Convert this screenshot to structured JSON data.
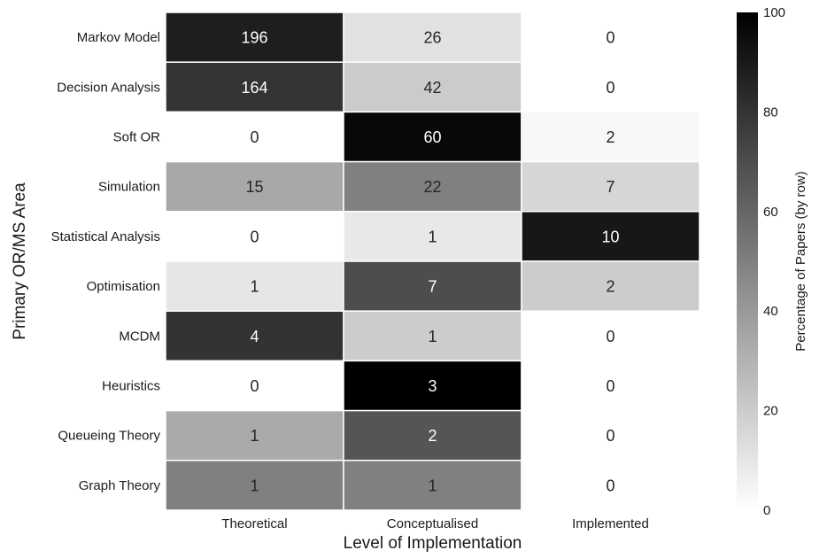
{
  "chart_data": {
    "type": "heatmap",
    "title": "",
    "xlabel": "Level of Implementation",
    "ylabel": "Primary OR/MS Area",
    "columns": [
      "Theoretical",
      "Conceptualised",
      "Implemented"
    ],
    "rows": [
      "Markov Model",
      "Decision Analysis",
      "Soft OR",
      "Simulation",
      "Statistical Analysis",
      "Optimisation",
      "MCDM",
      "Heuristics",
      "Queueing Theory",
      "Graph Theory"
    ],
    "counts": [
      [
        196,
        26,
        0
      ],
      [
        164,
        42,
        0
      ],
      [
        0,
        60,
        2
      ],
      [
        15,
        22,
        7
      ],
      [
        0,
        1,
        10
      ],
      [
        1,
        7,
        2
      ],
      [
        4,
        1,
        0
      ],
      [
        0,
        3,
        0
      ],
      [
        1,
        2,
        0
      ],
      [
        1,
        1,
        0
      ]
    ],
    "color_metric": "percentage of row total",
    "colorbar": {
      "label": "Percentage of Papers (by row)",
      "range": [
        0,
        100
      ],
      "ticks": [
        0,
        20,
        40,
        60,
        80,
        100
      ],
      "colormap": "white-to-black (greys)"
    },
    "grid": false
  }
}
